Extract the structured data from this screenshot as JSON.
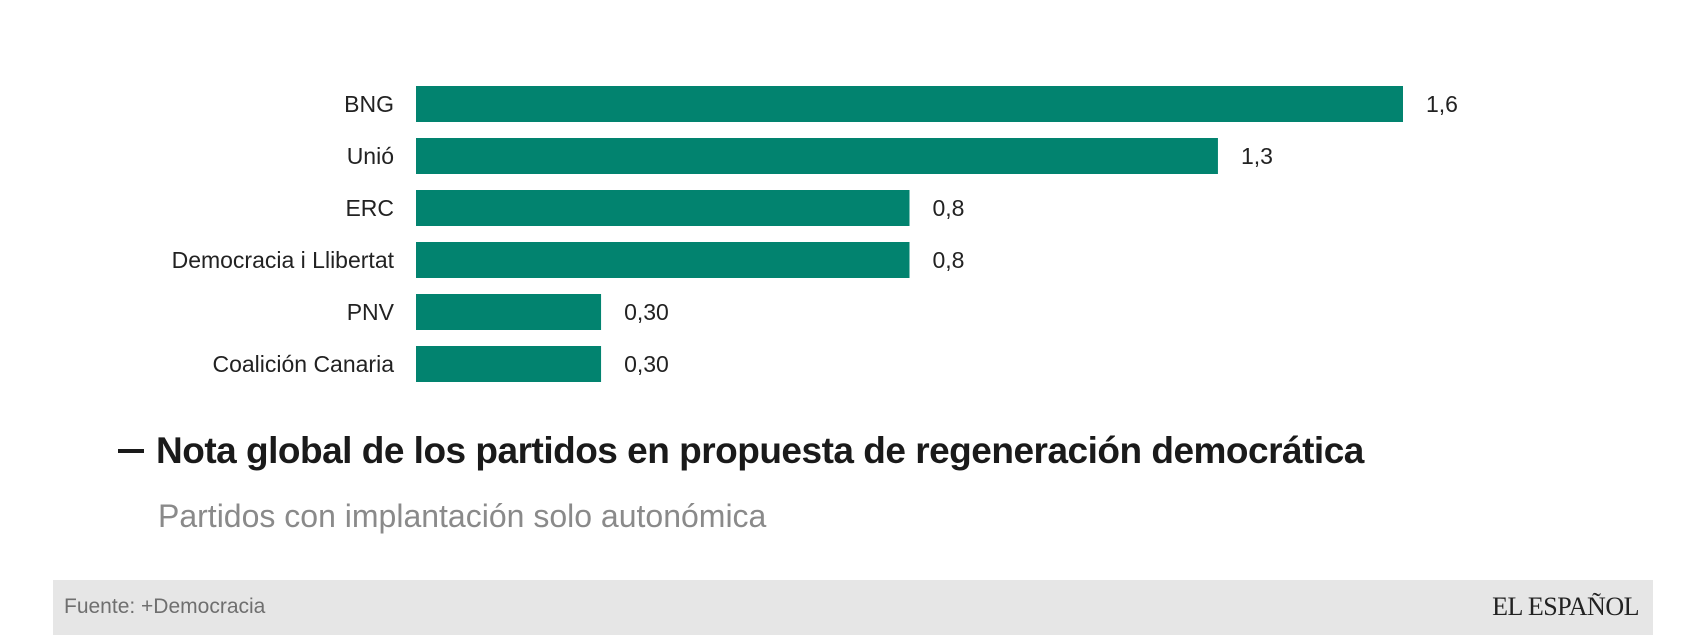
{
  "chart_data": {
    "type": "bar",
    "orientation": "horizontal",
    "title": "Nota global de los partidos en propuesta de regeneración democrática",
    "subtitle": "Partidos con implantación solo autonómica",
    "categories": [
      "BNG",
      "Unió",
      "ERC",
      "Democracia i Llibertat",
      "PNV",
      "Coalición Canaria"
    ],
    "values": [
      1.6,
      1.3,
      0.8,
      0.8,
      0.3,
      0.3
    ],
    "value_labels": [
      "1,6",
      "1,3",
      "0,8",
      "0,8",
      "0,30",
      "0,30"
    ],
    "xlabel": "",
    "ylabel": "",
    "xlim": [
      0,
      1.6
    ],
    "grid": false,
    "legend": "none",
    "bar_color": "#02836f"
  },
  "footer": {
    "source": "Fuente: +Democracia",
    "logo": "EL ESPAÑOL"
  }
}
